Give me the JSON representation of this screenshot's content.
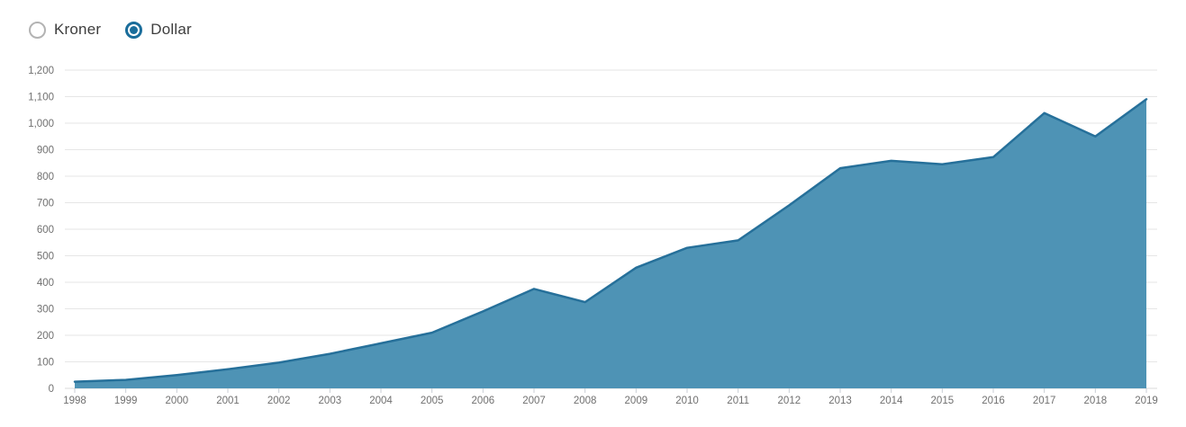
{
  "controls": {
    "radios": [
      {
        "label": "Kroner",
        "selected": false
      },
      {
        "label": "Dollar",
        "selected": true
      }
    ]
  },
  "colors": {
    "accent_blue": "#1a6d9b",
    "area_fill": "#4e93b5",
    "area_stroke": "#26709a",
    "gridline": "#e6e6e6",
    "baseline": "#d9d9d9",
    "tick": "#c9ced4",
    "axis_label": "#707070"
  },
  "chart_data": {
    "type": "area",
    "title": "",
    "xlabel": "",
    "ylabel": "",
    "categories": [
      "1998",
      "1999",
      "2000",
      "2001",
      "2002",
      "2003",
      "2004",
      "2005",
      "2006",
      "2007",
      "2008",
      "2009",
      "2010",
      "2011",
      "2012",
      "2013",
      "2014",
      "2015",
      "2016",
      "2017",
      "2018",
      "2019"
    ],
    "series": [
      {
        "name": "Dollar",
        "values": [
          25,
          32,
          50,
          72,
          97,
          130,
          170,
          210,
          290,
          375,
          325,
          455,
          530,
          558,
          690,
          830,
          858,
          845,
          872,
          1038,
          950,
          1090
        ]
      }
    ],
    "ylim": [
      0,
      1200
    ],
    "ytick_interval": 100,
    "ytick_labels": [
      "0",
      "100",
      "200",
      "300",
      "400",
      "500",
      "600",
      "700",
      "800",
      "900",
      "1,000",
      "1,100",
      "1,200"
    ],
    "grid": "horizontal",
    "legend": "none"
  }
}
